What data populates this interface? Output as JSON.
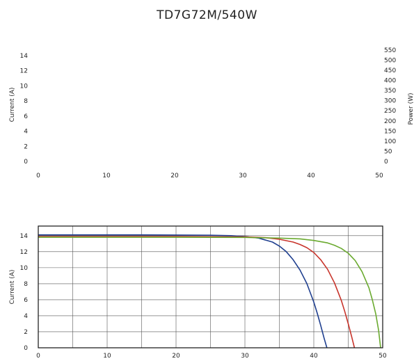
{
  "title": "TD7G72M/540W",
  "chart_data": [
    {
      "type": "line",
      "xlabel": "",
      "ylabel": "Current (A)",
      "y2label": "Power (W)",
      "xlim": [
        0,
        50
      ],
      "ylim": [
        0,
        15
      ],
      "y2lim": [
        0,
        560
      ],
      "xticks": [
        0,
        10,
        20,
        30,
        40,
        50
      ],
      "yticks": [
        0,
        2,
        4,
        6,
        8,
        10,
        12,
        14
      ],
      "y2ticks": [
        0,
        50,
        100,
        150,
        200,
        250,
        300,
        350,
        400,
        450,
        500,
        550
      ],
      "grid": false,
      "series": []
    },
    {
      "type": "line",
      "xlabel": "",
      "ylabel": "Current (A)",
      "xlim": [
        0,
        50
      ],
      "ylim": [
        0,
        15.2
      ],
      "xticks": [
        0,
        10,
        20,
        30,
        40,
        50
      ],
      "yticks": [
        0,
        2,
        4,
        6,
        8,
        10,
        12,
        14
      ],
      "grid": true,
      "series": [
        {
          "color": "#1f3f8f",
          "x": [
            0,
            5,
            10,
            15,
            20,
            25,
            28,
            30,
            32,
            34,
            35,
            36,
            37,
            38,
            39,
            40,
            40.5,
            41,
            41.5,
            41.9
          ],
          "y": [
            14.1,
            14.1,
            14.1,
            14.1,
            14.08,
            14.05,
            14.0,
            13.9,
            13.7,
            13.2,
            12.7,
            12.0,
            11.0,
            9.7,
            8.0,
            5.7,
            4.3,
            2.8,
            1.2,
            0
          ]
        },
        {
          "color": "#c8342b",
          "x": [
            0,
            10,
            20,
            30,
            33,
            35,
            37,
            38,
            39,
            40,
            41,
            42,
            43,
            44,
            44.5,
            45,
            45.5,
            45.9
          ],
          "y": [
            13.9,
            13.9,
            13.9,
            13.85,
            13.75,
            13.55,
            13.2,
            12.9,
            12.5,
            11.9,
            11.0,
            9.8,
            8.1,
            5.9,
            4.5,
            3.0,
            1.4,
            0
          ]
        },
        {
          "color": "#6aaa2f",
          "x": [
            0,
            10,
            20,
            30,
            35,
            38,
            40,
            42,
            43,
            44,
            45,
            46,
            47,
            48,
            48.5,
            49,
            49.4,
            49.7
          ],
          "y": [
            13.8,
            13.8,
            13.8,
            13.78,
            13.7,
            13.6,
            13.4,
            13.1,
            12.8,
            12.4,
            11.8,
            10.9,
            9.5,
            7.5,
            6.0,
            4.2,
            2.2,
            0
          ]
        }
      ]
    }
  ]
}
